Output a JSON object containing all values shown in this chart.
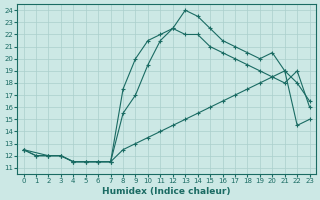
{
  "xlabel": "Humidex (Indice chaleur)",
  "background_color": "#cce8e5",
  "line_color": "#1a6b63",
  "grid_color": "#aacfcc",
  "xlim": [
    -0.5,
    23.5
  ],
  "ylim": [
    10.5,
    24.5
  ],
  "xticks": [
    0,
    1,
    2,
    3,
    4,
    5,
    6,
    7,
    8,
    9,
    10,
    11,
    12,
    13,
    14,
    15,
    16,
    17,
    18,
    19,
    20,
    21,
    22,
    23
  ],
  "yticks": [
    11,
    12,
    13,
    14,
    15,
    16,
    17,
    18,
    19,
    20,
    21,
    22,
    23,
    24
  ],
  "line1_x": [
    0,
    1,
    2,
    3,
    4,
    5,
    6,
    7,
    8,
    9,
    10,
    11,
    12,
    13,
    14,
    15,
    16,
    17,
    18,
    19,
    20,
    21,
    22,
    23
  ],
  "line1_y": [
    12.5,
    12.0,
    12.0,
    12.0,
    11.5,
    11.5,
    11.5,
    11.5,
    12.5,
    13.0,
    13.5,
    14.0,
    14.5,
    15.0,
    15.5,
    16.0,
    16.5,
    17.0,
    17.5,
    18.0,
    18.5,
    19.0,
    14.5,
    15.0
  ],
  "line2_x": [
    0,
    1,
    2,
    3,
    4,
    5,
    6,
    7,
    8,
    9,
    10,
    11,
    12,
    13,
    14,
    15,
    16,
    17,
    18,
    19,
    20,
    21,
    22,
    23
  ],
  "line2_y": [
    12.5,
    12.0,
    12.0,
    12.0,
    11.5,
    11.5,
    11.5,
    11.5,
    15.5,
    17.0,
    19.5,
    21.5,
    22.5,
    22.0,
    22.0,
    21.0,
    20.5,
    20.0,
    19.5,
    19.0,
    18.5,
    18.0,
    19.0,
    16.0
  ],
  "line3_x": [
    0,
    2,
    3,
    4,
    5,
    6,
    7,
    8,
    9,
    10,
    11,
    12,
    13,
    14,
    15,
    16,
    17,
    18,
    19,
    20,
    21,
    22,
    23
  ],
  "line3_y": [
    12.5,
    12.0,
    12.0,
    11.5,
    11.5,
    11.5,
    11.5,
    17.5,
    20.0,
    21.5,
    22.0,
    22.5,
    24.0,
    23.5,
    22.5,
    21.5,
    21.0,
    20.5,
    20.0,
    20.5,
    19.0,
    18.0,
    16.5
  ]
}
